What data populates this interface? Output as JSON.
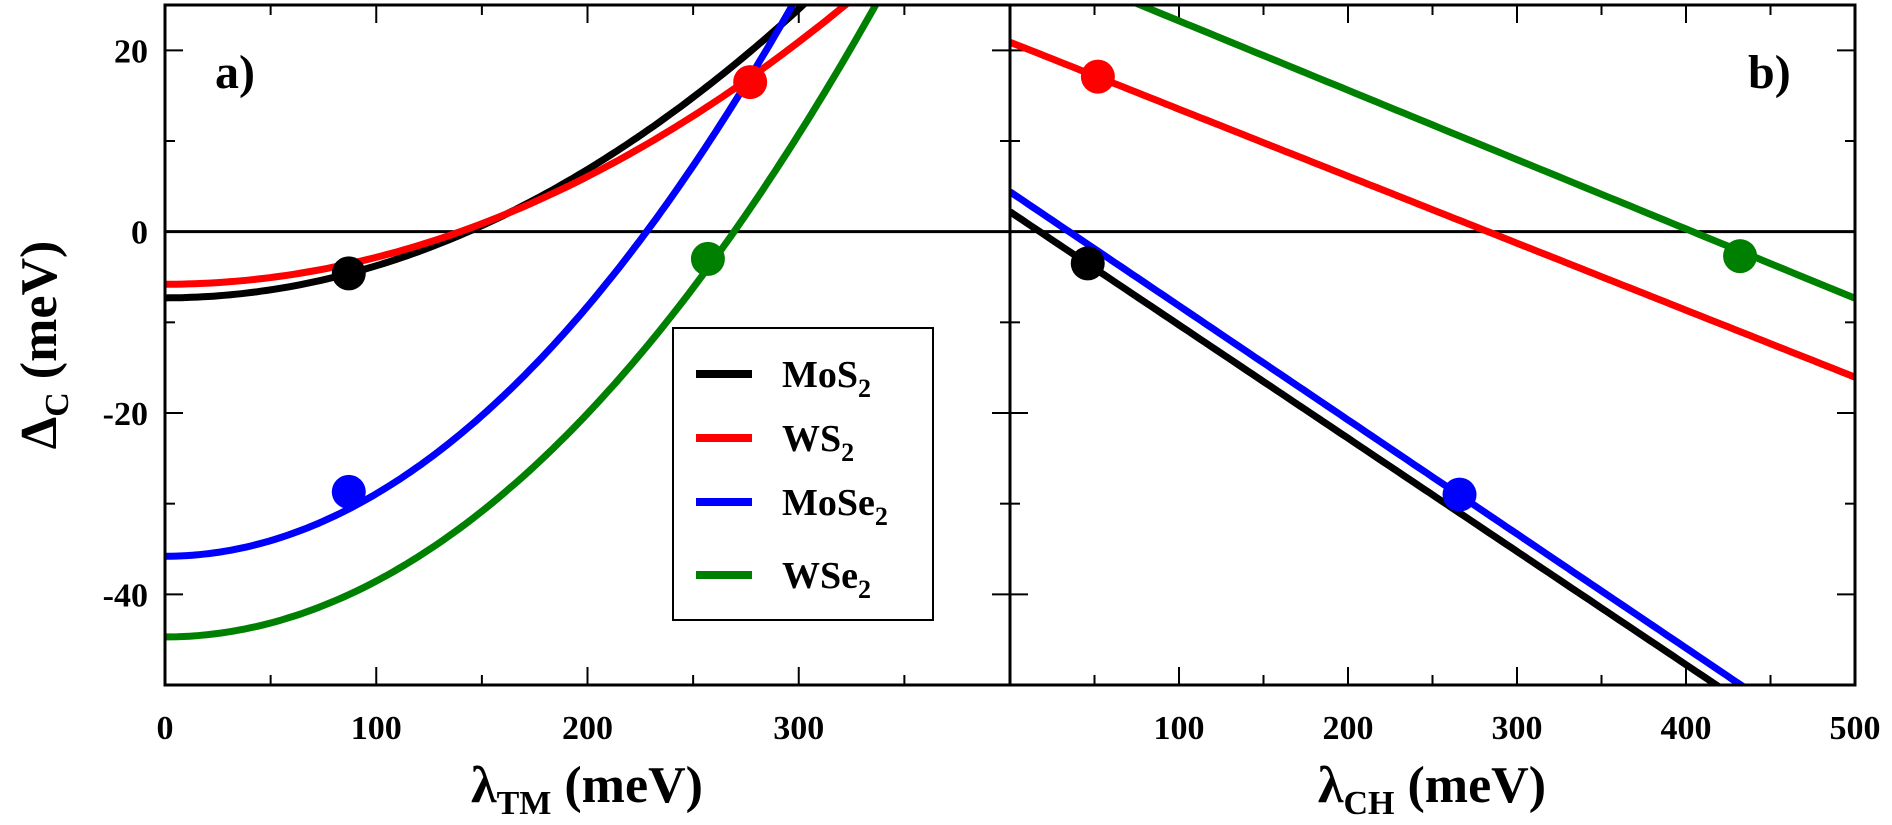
{
  "chart_data": {
    "type": "line",
    "y_axis": {
      "label_main": "Δ",
      "label_sub": "C",
      "label_unit": " (meV)",
      "ylim": [
        -50,
        25
      ],
      "ticks": [
        20,
        0,
        -20,
        -40
      ],
      "tick_labels": [
        "20",
        "0",
        "-20",
        "-40"
      ],
      "minor_step": 10
    },
    "legend": {
      "placement": "inside-panel-a-lower-center",
      "entries": [
        {
          "base": "MoS",
          "sub": "2",
          "color": "#000000"
        },
        {
          "base": "WS",
          "sub": "2",
          "color": "#ff0000"
        },
        {
          "base": "MoSe",
          "sub": "2",
          "color": "#0000ff"
        },
        {
          "base": "WSe",
          "sub": "2",
          "color": "#008000"
        }
      ]
    },
    "panels": [
      {
        "label": "a)",
        "xlabel_main": "λ",
        "xlabel_sub": "TM",
        "xlabel_unit": " (meV)",
        "xlim": [
          0,
          400
        ],
        "x_ticks": [
          0,
          100,
          200,
          300
        ],
        "x_tick_labels": [
          "0",
          "100",
          "200",
          "300"
        ],
        "x_minor_step": 50,
        "series": [
          {
            "name": "MoS2",
            "color": "#000000",
            "kind": "quadratic",
            "coeffs": [
              -7.3,
              0,
              0.000354
            ],
            "x_range": [
              0,
              305
            ],
            "marker": [
              87,
              -4.6
            ]
          },
          {
            "name": "WS2",
            "color": "#ff0000",
            "kind": "quadratic",
            "coeffs": [
              -5.8,
              0,
              0.000297
            ],
            "x_range": [
              0,
              330
            ],
            "marker": [
              277,
              16.5
            ]
          },
          {
            "name": "MoSe2",
            "color": "#0000ff",
            "kind": "quadratic",
            "coeffs": [
              -35.8,
              0,
              0.000689
            ],
            "x_range": [
              0,
              310
            ],
            "marker": [
              87,
              -28.7
            ]
          },
          {
            "name": "WSe2",
            "color": "#008000",
            "kind": "quadratic",
            "coeffs": [
              -44.7,
              0,
              0.000616
            ],
            "x_range": [
              0,
              350
            ],
            "marker": [
              257,
              -3.0
            ]
          }
        ]
      },
      {
        "label": "b)",
        "xlabel_main": "λ",
        "xlabel_sub": "CH",
        "xlabel_unit": " (meV)",
        "xlim": [
          0,
          500
        ],
        "x_ticks": [
          100,
          200,
          300,
          400,
          500
        ],
        "x_tick_labels": [
          "100",
          "200",
          "300",
          "400",
          "500"
        ],
        "x_minor_step": 50,
        "series": [
          {
            "name": "MoS2",
            "color": "#000000",
            "kind": "linear",
            "coeffs": [
              2.2,
              -0.1249
            ],
            "x_range": [
              0,
              420
            ],
            "marker": [
              46,
              -3.5
            ]
          },
          {
            "name": "WS2",
            "color": "#ff0000",
            "kind": "linear",
            "coeffs": [
              20.9,
              -0.0739
            ],
            "x_range": [
              0,
              500
            ],
            "marker": [
              52,
              17.1
            ]
          },
          {
            "name": "MoSe2",
            "color": "#0000ff",
            "kind": "linear",
            "coeffs": [
              4.4,
              -0.1258
            ],
            "x_range": [
              0,
              435
            ],
            "marker": [
              266,
              -29.0
            ]
          },
          {
            "name": "WSe2",
            "color": "#008000",
            "kind": "linear",
            "coeffs": [
              30.9,
              -0.0765
            ],
            "x_range": [
              0,
              500
            ],
            "marker": [
              432,
              -2.7
            ]
          }
        ]
      }
    ]
  }
}
